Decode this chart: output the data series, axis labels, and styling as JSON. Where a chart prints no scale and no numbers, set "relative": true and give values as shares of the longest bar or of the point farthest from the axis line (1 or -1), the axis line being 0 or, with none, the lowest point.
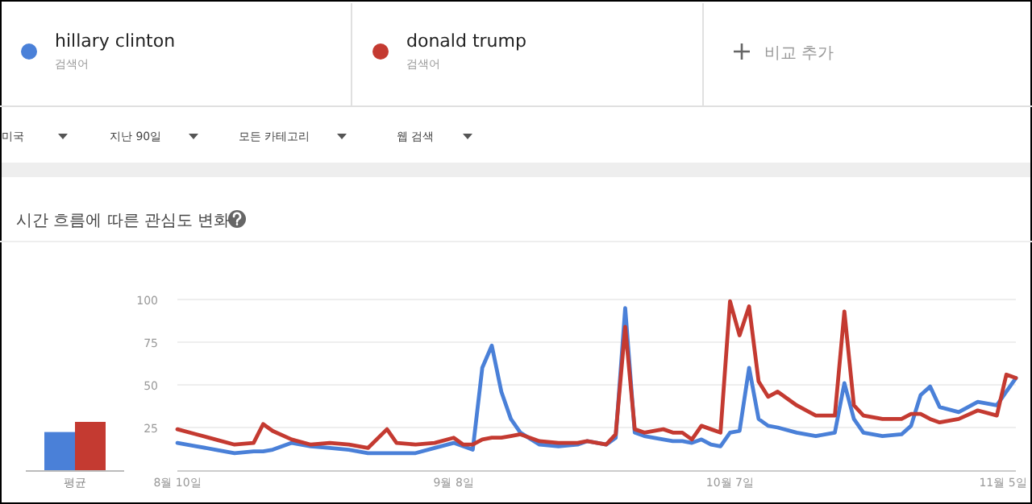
{
  "chart_data": [
    {
      "type": "bar",
      "relative": true,
      "categories": [
        "평균"
      ],
      "series": [
        {
          "color": "#4a80d8",
          "values": [
            0.79
          ]
        },
        {
          "color": "#c43a31",
          "values": [
            1
          ]
        }
      ]
    },
    {
      "type": "line",
      "title": "시간 흐름에 따른 관심도 변화",
      "annotations": [
        "검색어",
        "검색어",
        "비교 추가",
        "미국",
        "지난 90일",
        "모든 카테고리",
        "웹 검색"
      ],
      "legend": "top",
      "grid": "y",
      "x": [
        "--08-10",
        "--08-12",
        "--08-14",
        "--08-16",
        "--08-18",
        "--08-19",
        "--08-20",
        "--08-22",
        "--08-24",
        "--08-26",
        "--08-28",
        "--08-30",
        "--09-01",
        "--09-02",
        "--09-04",
        "--09-06",
        "--09-08",
        "--09-09",
        "--09-10",
        "--09-11",
        "--09-12",
        "--09-13",
        "--09-14",
        "--09-15",
        "--09-17",
        "--09-19",
        "--09-21",
        "--09-22",
        "--09-24",
        "--09-25",
        "--09-26",
        "--09-27",
        "--09-28",
        "--09-30",
        "--10-01",
        "--10-02",
        "--10-03",
        "--10-04",
        "--10-05",
        "--10-06",
        "--10-07",
        "--10-08",
        "--10-09",
        "--10-10",
        "--10-11",
        "--10-12",
        "--10-14",
        "--10-16",
        "--10-18",
        "--10-19",
        "--10-20",
        "--10-21",
        "--10-23",
        "--10-25",
        "--10-26",
        "--10-27",
        "--10-28",
        "--10-29",
        "--10-31",
        "--11-02",
        "--11-04",
        "--11-05",
        "--11-06"
      ],
      "series": [
        {
          "name": "hillary clinton",
          "color": "#4a80d8",
          "values": [
            16,
            14,
            12,
            10,
            11,
            11,
            12,
            16,
            14,
            13,
            12,
            10,
            10,
            10,
            10,
            13,
            16,
            14,
            12,
            60,
            73,
            46,
            30,
            22,
            15,
            14,
            15,
            17,
            15,
            19,
            95,
            22,
            20,
            18,
            17,
            17,
            16,
            18,
            15,
            14,
            22,
            23,
            60,
            30,
            26,
            25,
            22,
            20,
            22,
            51,
            30,
            22,
            20,
            21,
            26,
            44,
            49,
            37,
            34,
            40,
            38,
            46,
            54
          ]
        },
        {
          "name": "donald trump",
          "color": "#c43a31",
          "values": [
            24,
            21,
            18,
            15,
            16,
            27,
            23,
            18,
            15,
            16,
            15,
            13,
            24,
            16,
            15,
            16,
            19,
            15,
            15,
            18,
            19,
            19,
            20,
            21,
            17,
            16,
            16,
            17,
            15,
            21,
            84,
            24,
            22,
            24,
            22,
            22,
            18,
            26,
            24,
            22,
            99,
            79,
            96,
            52,
            43,
            46,
            38,
            32,
            32,
            93,
            38,
            32,
            30,
            30,
            33,
            33,
            30,
            28,
            30,
            35,
            32,
            56,
            54
          ]
        }
      ],
      "xlim": [
        "--08-10",
        "--11-06"
      ],
      "xticks": [
        {
          "value": "--08-10",
          "label": "8월 10일"
        },
        {
          "value": "--09-08",
          "label": "9월 8일"
        },
        {
          "value": "--10-07",
          "label": "10월 7일"
        },
        {
          "value": "--11-05",
          "label": "11월 5일"
        }
      ],
      "ylim": [
        0,
        100
      ],
      "yticks": [
        25,
        50,
        75,
        100
      ]
    }
  ]
}
